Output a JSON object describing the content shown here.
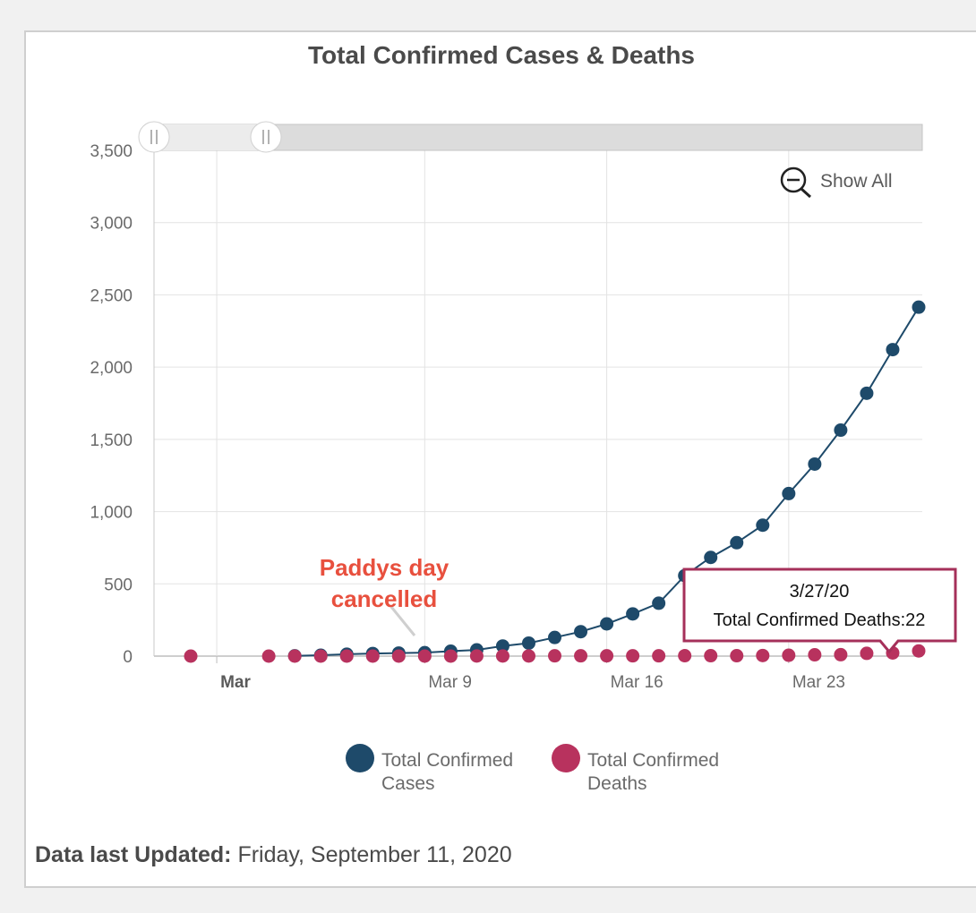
{
  "page": {
    "title": "Total Confirmed Cases & Deaths",
    "show_all_label": "Show All",
    "updated_label": "Data last Updated:",
    "updated_value": "Friday, September 11, 2020",
    "annotation_line1": "Paddys day",
    "annotation_line2": "cancelled",
    "tooltip_date": "3/27/20",
    "tooltip_text": "Total Confirmed Deaths:22"
  },
  "chart_data": {
    "type": "line",
    "title": "Total Confirmed Cases & Deaths",
    "xlabel": "",
    "ylabel": "",
    "ylim": [
      0,
      3500
    ],
    "yticks": [
      0,
      500,
      1000,
      1500,
      2000,
      2500,
      3000,
      3500
    ],
    "ytick_labels": [
      "0",
      "500",
      "1,000",
      "1,500",
      "2,000",
      "2,500",
      "3,000",
      "3,500"
    ],
    "xlim": [
      "2020-02-28",
      "2020-03-28"
    ],
    "xticks": [
      {
        "date": "2020-03-01",
        "label": "Mar",
        "major": true
      },
      {
        "date": "2020-03-09",
        "label": "Mar 9",
        "major": false
      },
      {
        "date": "2020-03-16",
        "label": "Mar 16",
        "major": false
      },
      {
        "date": "2020-03-23",
        "label": "Mar 23",
        "major": false
      }
    ],
    "grid": true,
    "legend": "bottom",
    "series": [
      {
        "name": "Total Confirmed Cases",
        "color": "#1e4a6a",
        "line": true,
        "points": [
          [
            "2020-03-04",
            2
          ],
          [
            "2020-03-05",
            6
          ],
          [
            "2020-03-06",
            13
          ],
          [
            "2020-03-07",
            18
          ],
          [
            "2020-03-08",
            21
          ],
          [
            "2020-03-09",
            24
          ],
          [
            "2020-03-10",
            34
          ],
          [
            "2020-03-11",
            43
          ],
          [
            "2020-03-12",
            70
          ],
          [
            "2020-03-13",
            90
          ],
          [
            "2020-03-14",
            129
          ],
          [
            "2020-03-15",
            169
          ],
          [
            "2020-03-16",
            223
          ],
          [
            "2020-03-17",
            292
          ],
          [
            "2020-03-18",
            366
          ],
          [
            "2020-03-19",
            557
          ],
          [
            "2020-03-20",
            683
          ],
          [
            "2020-03-21",
            785
          ],
          [
            "2020-03-22",
            906
          ],
          [
            "2020-03-23",
            1125
          ],
          [
            "2020-03-24",
            1329
          ],
          [
            "2020-03-25",
            1564
          ],
          [
            "2020-03-26",
            1819
          ],
          [
            "2020-03-27",
            2121
          ],
          [
            "2020-03-28",
            2415
          ]
        ]
      },
      {
        "name": "Total Confirmed Deaths",
        "color": "#b8325e",
        "line": false,
        "points": [
          [
            "2020-02-29",
            0
          ],
          [
            "2020-03-03",
            0
          ],
          [
            "2020-03-04",
            0
          ],
          [
            "2020-03-05",
            0
          ],
          [
            "2020-03-06",
            0
          ],
          [
            "2020-03-07",
            0
          ],
          [
            "2020-03-08",
            0
          ],
          [
            "2020-03-09",
            0
          ],
          [
            "2020-03-10",
            0
          ],
          [
            "2020-03-11",
            1
          ],
          [
            "2020-03-12",
            1
          ],
          [
            "2020-03-13",
            1
          ],
          [
            "2020-03-14",
            2
          ],
          [
            "2020-03-15",
            2
          ],
          [
            "2020-03-16",
            2
          ],
          [
            "2020-03-17",
            2
          ],
          [
            "2020-03-18",
            2
          ],
          [
            "2020-03-19",
            3
          ],
          [
            "2020-03-20",
            3
          ],
          [
            "2020-03-21",
            3
          ],
          [
            "2020-03-22",
            4
          ],
          [
            "2020-03-23",
            6
          ],
          [
            "2020-03-24",
            9
          ],
          [
            "2020-03-25",
            10
          ],
          [
            "2020-03-26",
            19
          ],
          [
            "2020-03-27",
            22
          ],
          [
            "2020-03-28",
            36
          ]
        ]
      }
    ]
  }
}
